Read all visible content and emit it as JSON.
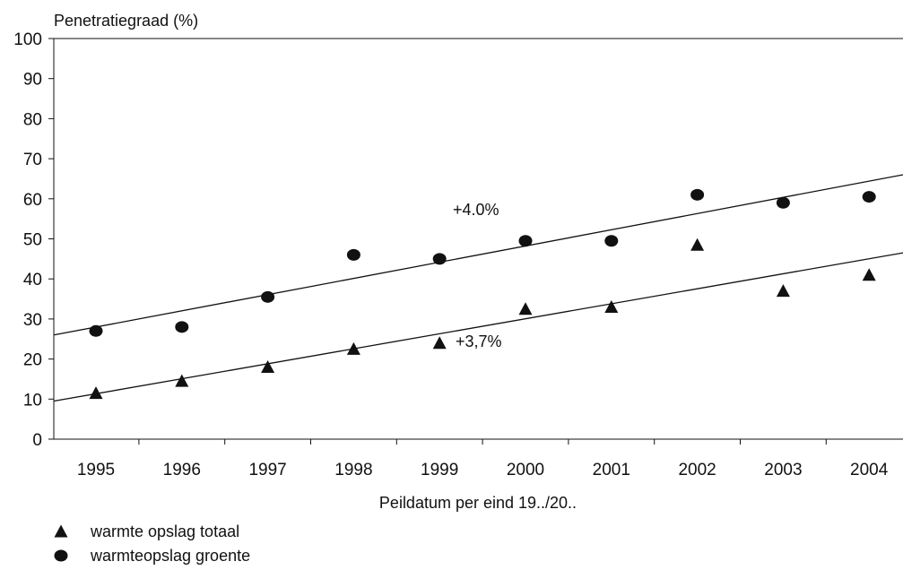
{
  "chart_data": {
    "type": "scatter",
    "xlabel": "Peildatum per eind 19../20..",
    "ylabel": "Penetratiegraad (%)",
    "ylim": [
      0,
      100
    ],
    "yticks": [
      0,
      10,
      20,
      30,
      40,
      50,
      60,
      70,
      80,
      90,
      100
    ],
    "categories": [
      "1995",
      "1996",
      "1997",
      "1998",
      "1999",
      "2000",
      "2001",
      "2002",
      "2003",
      "2004"
    ],
    "grid": false,
    "legend_position": "bottom-left",
    "series": [
      {
        "name": "warmte opslag totaal",
        "marker": "triangle",
        "values": [
          11.5,
          14.5,
          18,
          22.5,
          24,
          32.5,
          33,
          48.5,
          37,
          41
        ],
        "trend": {
          "label": "+3,7%",
          "start": 9.5,
          "end": 46.5
        }
      },
      {
        "name": "warmteopslag groente",
        "marker": "circle",
        "values": [
          27,
          28,
          35.5,
          46,
          45,
          49.5,
          49.5,
          61,
          59,
          60.5
        ],
        "trend": {
          "label": "+4.0%",
          "start": 26,
          "end": 66
        }
      }
    ],
    "color": "#111111"
  }
}
